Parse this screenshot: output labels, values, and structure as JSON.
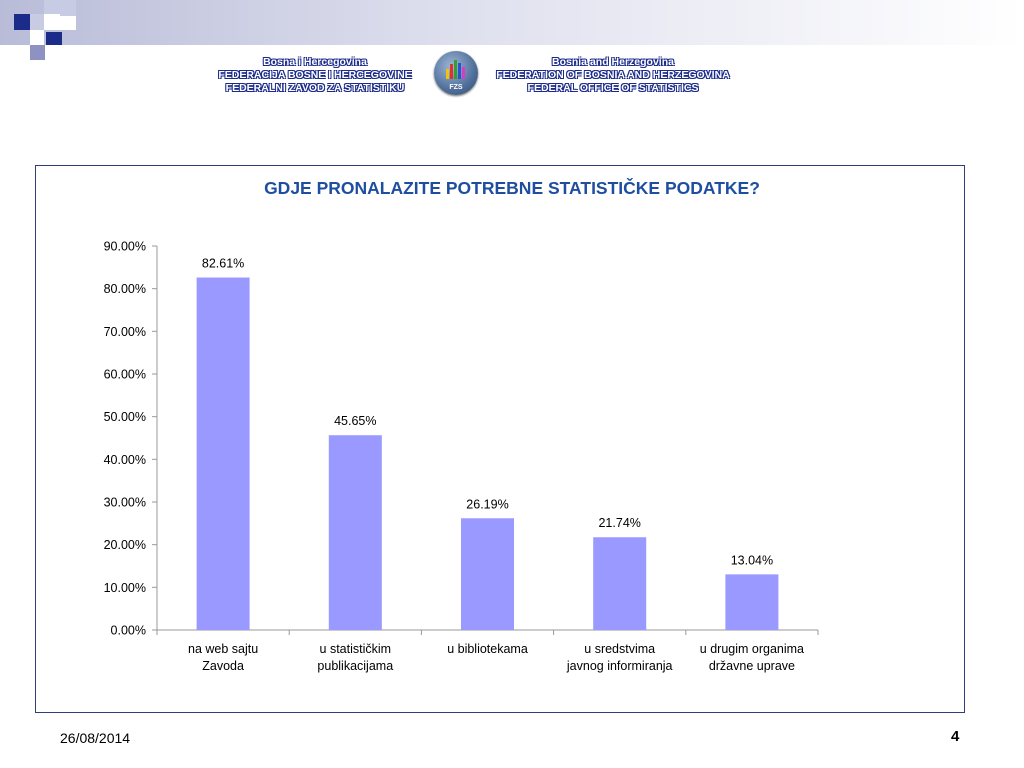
{
  "header": {
    "left_lines": [
      "Bosna i Hercegovina",
      "FEDERACIJA BOSNE  I HERCEGOVINE",
      "FEDERALNI ZAVOD ZA STATISTIKU"
    ],
    "right_lines": [
      "Bosnia and Herzegovina",
      "FEDERATION OF BOSNIA AND HERZEGOVINA",
      "FEDERAL OFFICE OF STATISTICS"
    ],
    "logo_text": "FZS",
    "brand_color": "#1a2a8a"
  },
  "chart_data": {
    "type": "bar",
    "title": "GDJE PRONALAZITE POTREBNE STATISTIČKE PODATKE?",
    "categories": [
      [
        "na web sajtu",
        "Zavoda"
      ],
      [
        "u statističkim",
        "publikacijama"
      ],
      [
        "u bibliotekama"
      ],
      [
        "u  sredstvima",
        "javnog informiranja"
      ],
      [
        "u drugim organima",
        "državne uprave"
      ]
    ],
    "values": [
      82.61,
      45.65,
      26.19,
      21.74,
      13.04
    ],
    "value_labels": [
      "82.61%",
      "45.65%",
      "26.19%",
      "21.74%",
      "13.04%"
    ],
    "ylim": [
      0,
      90
    ],
    "y_ticks": [
      "0.00%",
      "10.00%",
      "20.00%",
      "30.00%",
      "40.00%",
      "50.00%",
      "60.00%",
      "70.00%",
      "80.00%",
      "90.00%"
    ],
    "grid": false,
    "legend": "none",
    "bar_color": "#9999ff",
    "title_color": "#1f4ea0"
  },
  "footer": {
    "date": "26/08/2014",
    "page": "4"
  }
}
